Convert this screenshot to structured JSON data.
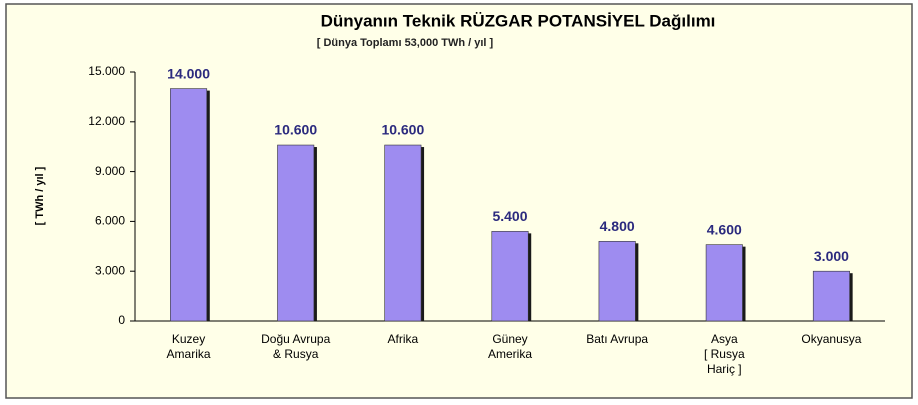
{
  "chart_data": {
    "type": "bar",
    "title": "Dünyanın Teknik  RÜZGAR POTANSİYEL  Dağılımı",
    "subtitle": "[ Dünya Toplamı   53,000   TWh / yıl ]",
    "y_label": "[ TWh / yıl ]",
    "categories": [
      "Kuzey\nAmarika",
      "Doğu Avrupa\n& Rusya",
      "Afrika",
      "Güney\nAmerika",
      "Batı Avrupa",
      "Asya\n[ Rusya\nHariç ]",
      "Okyanusya"
    ],
    "values": [
      14000,
      10600,
      10600,
      5400,
      4800,
      4600,
      3000
    ],
    "value_labels": [
      "14.000",
      "10.600",
      "10.600",
      "5.400",
      "4.800",
      "4.600",
      "3.000"
    ],
    "color": "#9e8cf0",
    "ylim": [
      0,
      15000
    ],
    "yticks": [
      0,
      {
        "value": 3000,
        "label": "3.000"
      },
      {
        "value": 6000,
        "label": "6.000"
      },
      {
        "value": 9000,
        "label": "9.000"
      },
      {
        "value": 12000,
        "label": "12.000"
      },
      {
        "value": 15000,
        "label": "15.000"
      }
    ],
    "grid": false
  }
}
